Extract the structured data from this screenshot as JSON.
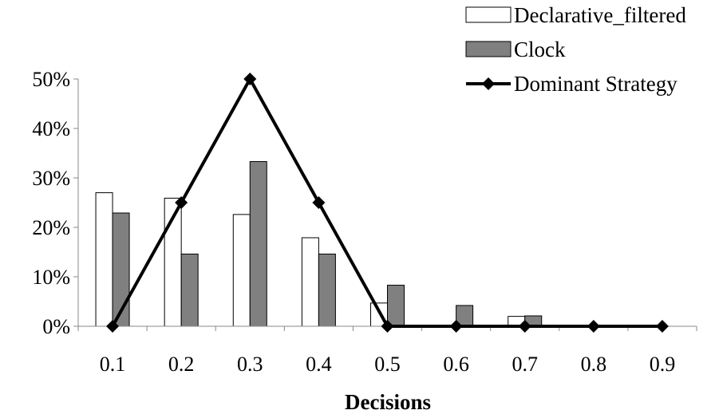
{
  "chart_data": {
    "type": "bar",
    "categories": [
      "0.1",
      "0.2",
      "0.3",
      "0.4",
      "0.5",
      "0.6",
      "0.7",
      "0.8",
      "0.9"
    ],
    "series": [
      {
        "name": "Declarative_filtered",
        "kind": "bar",
        "color": "#ffffff",
        "values": [
          0.27,
          0.259,
          0.226,
          0.179,
          0.047,
          0.0,
          0.02,
          0.0,
          0.0
        ]
      },
      {
        "name": "Clock",
        "kind": "bar",
        "color": "#808080",
        "values": [
          0.229,
          0.146,
          0.333,
          0.146,
          0.083,
          0.042,
          0.021,
          0.0,
          0.0
        ]
      },
      {
        "name": "Dominant Strategy",
        "kind": "line",
        "color": "#000000",
        "marker": "diamond",
        "values": [
          0.0,
          0.25,
          0.5,
          0.25,
          0.0,
          0.0,
          0.0,
          0.0,
          0.0
        ]
      }
    ],
    "xlabel": "Decisions",
    "ylabel": "",
    "ylim": [
      0,
      0.5
    ],
    "yticks": [
      "0%",
      "10%",
      "20%",
      "30%",
      "40%",
      "50%"
    ],
    "grid": false,
    "legend_position": "top-right"
  }
}
